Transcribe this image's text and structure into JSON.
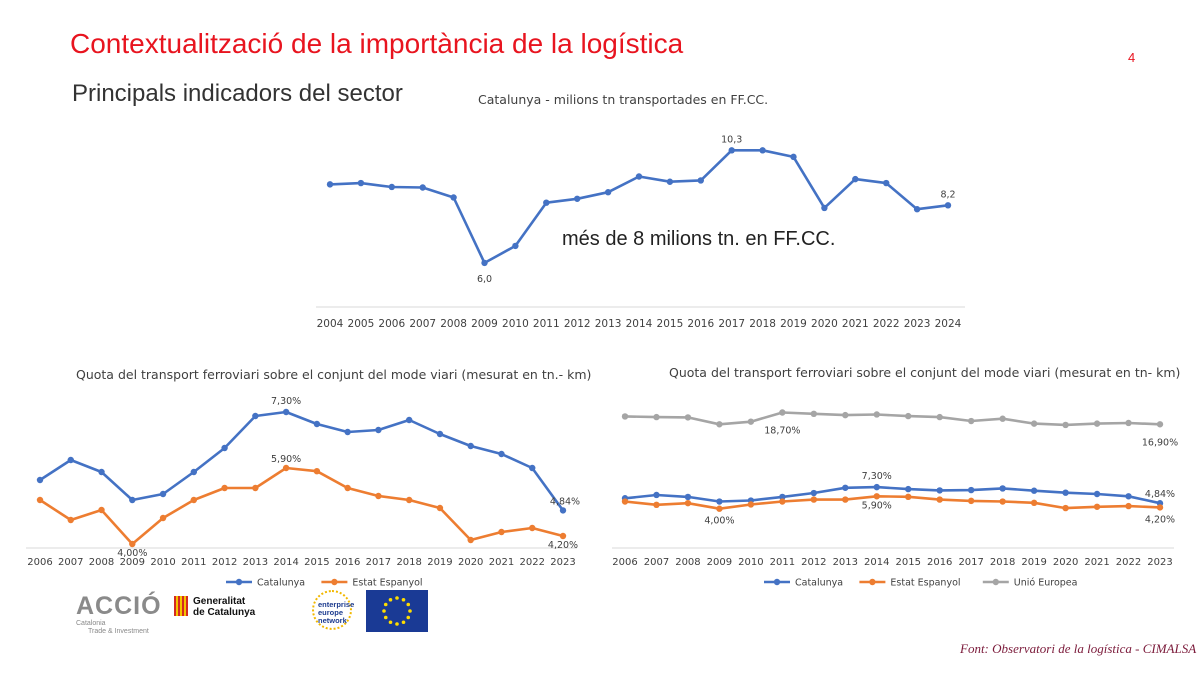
{
  "header": {
    "title": "Contextualització de la importància de la logística",
    "subtitle": "Principals indicadors del sector",
    "page_number": "4"
  },
  "annotation": "més de 8 milions tn. en FF.CC.",
  "source": "Font: Observatori de la logística - CIMALSA",
  "logos": {
    "accio": "ACCIÓ",
    "accio_tagline_1": "Catalonia",
    "accio_tagline_2": "Trade & Investment",
    "gencat_1": "Generalitat",
    "gencat_2": "de Catalunya",
    "een_1": "enterprise",
    "een_2": "europe",
    "een_3": "network"
  },
  "colors": {
    "blue": "#4472c4",
    "orange": "#ed7d31",
    "gray": "#a5a5a5",
    "title_red": "#e8141f"
  },
  "chart_data": [
    {
      "type": "line",
      "title": "Catalunya - milions tn transportades en FF.CC.",
      "x": [
        "2004",
        "2005",
        "2006",
        "2007",
        "2008",
        "2009",
        "2010",
        "2011",
        "2012",
        "2013",
        "2014",
        "2015",
        "2016",
        "2017",
        "2018",
        "2019",
        "2020",
        "2021",
        "2022",
        "2023",
        "2024"
      ],
      "series": [
        {
          "values": [
            9.0,
            9.05,
            8.9,
            8.88,
            8.5,
            6.0,
            6.65,
            8.3,
            8.45,
            8.7,
            9.3,
            9.1,
            9.15,
            10.3,
            10.3,
            10.05,
            8.1,
            9.2,
            9.05,
            8.05,
            8.2
          ],
          "color": "#4472c4"
        }
      ],
      "data_labels": [
        {
          "x": "2009",
          "text": "6,0"
        },
        {
          "x": "2017",
          "text": "10,3"
        },
        {
          "x": "2024",
          "text": "8,2"
        }
      ],
      "ylim": [
        5.5,
        11.0
      ],
      "grid": false,
      "legend": "none"
    },
    {
      "type": "line",
      "title": "Quota del transport ferroviari sobre el conjunt del mode viari (mesurat en tn.- km)",
      "x": [
        "2006",
        "2007",
        "2008",
        "2009",
        "2010",
        "2011",
        "2012",
        "2013",
        "2014",
        "2015",
        "2016",
        "2017",
        "2018",
        "2019",
        "2020",
        "2021",
        "2022",
        "2023"
      ],
      "series": [
        {
          "name": "Catalunya",
          "color": "#4472c4",
          "values": [
            5.6,
            6.1,
            5.8,
            5.1,
            5.25,
            5.8,
            6.4,
            7.2,
            7.3,
            7.0,
            6.8,
            6.85,
            7.1,
            6.75,
            6.45,
            6.25,
            5.9,
            4.84
          ]
        },
        {
          "name": "Estat Espanyol",
          "color": "#ed7d31",
          "values": [
            5.1,
            4.6,
            4.85,
            4.0,
            4.65,
            5.1,
            5.4,
            5.4,
            5.9,
            5.82,
            5.4,
            5.2,
            5.1,
            4.9,
            4.1,
            4.3,
            4.4,
            4.2
          ]
        }
      ],
      "data_labels": [
        {
          "series": "Catalunya",
          "x": "2014",
          "text": "7,30%"
        },
        {
          "series": "Catalunya",
          "x": "2023",
          "text": "4,84%"
        },
        {
          "series": "Estat Espanyol",
          "x": "2009",
          "text": "4,00%"
        },
        {
          "series": "Estat Espanyol",
          "x": "2014",
          "text": "5,90%"
        },
        {
          "series": "Estat Espanyol",
          "x": "2023",
          "text": "4,20%"
        }
      ],
      "ylim": [
        3.9,
        7.5
      ],
      "grid": false,
      "legend": "bottom"
    },
    {
      "type": "line",
      "title": "Quota del transport ferroviari sobre el conjunt del mode viari (mesurat en tn- km)",
      "x": [
        "2006",
        "2007",
        "2008",
        "2009",
        "2010",
        "2011",
        "2012",
        "2013",
        "2014",
        "2015",
        "2016",
        "2017",
        "2018",
        "2019",
        "2020",
        "2021",
        "2022",
        "2023"
      ],
      "series": [
        {
          "name": "Catalunya",
          "color": "#4472c4",
          "values": [
            5.6,
            6.1,
            5.8,
            5.1,
            5.25,
            5.8,
            6.4,
            7.2,
            7.3,
            7.0,
            6.8,
            6.85,
            7.1,
            6.75,
            6.45,
            6.25,
            5.9,
            4.84
          ]
        },
        {
          "name": "Estat Espanyol",
          "color": "#ed7d31",
          "values": [
            5.1,
            4.6,
            4.85,
            4.0,
            4.65,
            5.1,
            5.4,
            5.4,
            5.9,
            5.82,
            5.4,
            5.2,
            5.1,
            4.9,
            4.1,
            4.3,
            4.4,
            4.2
          ]
        },
        {
          "name": "Unió Europea",
          "color": "#a5a5a5",
          "values": [
            18.1,
            18.0,
            17.95,
            16.9,
            17.3,
            18.7,
            18.5,
            18.3,
            18.4,
            18.15,
            18.0,
            17.4,
            17.75,
            17.0,
            16.8,
            17.0,
            17.1,
            16.9
          ]
        }
      ],
      "data_labels": [
        {
          "series": "Unió Europea",
          "x": "2011",
          "text": "18,70%"
        },
        {
          "series": "Unió Europea",
          "x": "2023",
          "text": "16,90%"
        },
        {
          "series": "Catalunya",
          "x": "2014",
          "text": "7,30%"
        },
        {
          "series": "Catalunya",
          "x": "2023",
          "text": "4,84%"
        },
        {
          "series": "Estat Espanyol",
          "x": "2009",
          "text": "4,00%"
        },
        {
          "series": "Estat Espanyol",
          "x": "2014",
          "text": "5,90%"
        },
        {
          "series": "Estat Espanyol",
          "x": "2023",
          "text": "4,20%"
        }
      ],
      "ylim": [
        -2,
        20
      ],
      "grid": false,
      "legend": "bottom"
    }
  ]
}
